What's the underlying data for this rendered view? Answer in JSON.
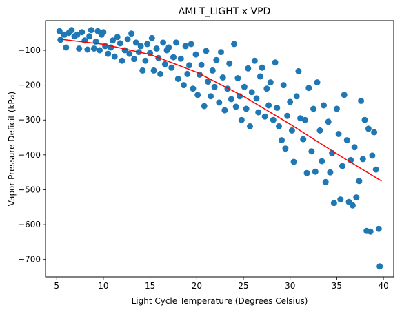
{
  "chart_data": {
    "type": "scatter",
    "title": "AMI T_LIGHT x VPD",
    "xlabel": "Light Cycle Temperature (Degrees Celsius)",
    "ylabel": "Vapor Pressure Deficit (kPa)",
    "xlim": [
      3.8,
      41.1
    ],
    "ylim": [
      -750,
      -15
    ],
    "xticks": [
      5,
      10,
      15,
      20,
      25,
      30,
      35,
      40
    ],
    "yticks": [
      -700,
      -600,
      -500,
      -400,
      -300,
      -200,
      -100
    ],
    "grid": false,
    "legend": "none",
    "colors": {
      "points": "#1f77b4",
      "fit": "#ff0000"
    },
    "series": [
      {
        "kind": "scatter",
        "points": [
          [
            5.3,
            -45
          ],
          [
            5.4,
            -70
          ],
          [
            5.8,
            -55
          ],
          [
            6.0,
            -92
          ],
          [
            6.3,
            -50
          ],
          [
            6.6,
            -42
          ],
          [
            6.9,
            -60
          ],
          [
            7.2,
            -55
          ],
          [
            7.4,
            -95
          ],
          [
            7.7,
            -48
          ],
          [
            8.0,
            -72
          ],
          [
            8.3,
            -98
          ],
          [
            8.5,
            -60
          ],
          [
            8.7,
            -42
          ],
          [
            9.0,
            -95
          ],
          [
            9.2,
            -75
          ],
          [
            9.4,
            -45
          ],
          [
            9.6,
            -100
          ],
          [
            9.8,
            -55
          ],
          [
            10.0,
            -48
          ],
          [
            10.2,
            -88
          ],
          [
            10.5,
            -110
          ],
          [
            10.8,
            -92
          ],
          [
            11.0,
            -72
          ],
          [
            11.2,
            -118
          ],
          [
            11.5,
            -62
          ],
          [
            11.8,
            -80
          ],
          [
            12.0,
            -130
          ],
          [
            12.3,
            -100
          ],
          [
            12.6,
            -68
          ],
          [
            12.8,
            -110
          ],
          [
            13.0,
            -52
          ],
          [
            13.3,
            -125
          ],
          [
            13.5,
            -78
          ],
          [
            13.8,
            -105
          ],
          [
            14.0,
            -88
          ],
          [
            14.2,
            -158
          ],
          [
            14.5,
            -130
          ],
          [
            14.7,
            -82
          ],
          [
            15.0,
            -108
          ],
          [
            15.2,
            -65
          ],
          [
            15.4,
            -158
          ],
          [
            15.7,
            -95
          ],
          [
            15.9,
            -122
          ],
          [
            16.1,
            -168
          ],
          [
            16.4,
            -78
          ],
          [
            16.6,
            -140
          ],
          [
            16.8,
            -100
          ],
          [
            17.0,
            -92
          ],
          [
            17.3,
            -150
          ],
          [
            17.5,
            -120
          ],
          [
            17.8,
            -78
          ],
          [
            18.0,
            -182
          ],
          [
            18.3,
            -124
          ],
          [
            18.6,
            -200
          ],
          [
            18.8,
            -88
          ],
          [
            19.0,
            -168
          ],
          [
            19.2,
            -143
          ],
          [
            19.4,
            -82
          ],
          [
            19.6,
            -210
          ],
          [
            19.9,
            -112
          ],
          [
            20.1,
            -228
          ],
          [
            20.3,
            -170
          ],
          [
            20.5,
            -142
          ],
          [
            20.8,
            -260
          ],
          [
            21.0,
            -102
          ],
          [
            21.2,
            -190
          ],
          [
            21.5,
            -232
          ],
          [
            21.7,
            -158
          ],
          [
            21.9,
            -205
          ],
          [
            22.1,
            -128
          ],
          [
            22.4,
            -250
          ],
          [
            22.6,
            -105
          ],
          [
            22.8,
            -178
          ],
          [
            23.0,
            -272
          ],
          [
            23.3,
            -210
          ],
          [
            23.5,
            -138
          ],
          [
            23.7,
            -240
          ],
          [
            24.0,
            -82
          ],
          [
            24.2,
            -262
          ],
          [
            24.4,
            -180
          ],
          [
            24.6,
            -232
          ],
          [
            24.8,
            -300
          ],
          [
            25.1,
            -205
          ],
          [
            25.3,
            -268
          ],
          [
            25.5,
            -152
          ],
          [
            25.7,
            -318
          ],
          [
            25.9,
            -220
          ],
          [
            26.2,
            -130
          ],
          [
            26.4,
            -238
          ],
          [
            26.6,
            -278
          ],
          [
            26.8,
            -175
          ],
          [
            27.0,
            -150
          ],
          [
            27.3,
            -290
          ],
          [
            27.5,
            -210
          ],
          [
            27.7,
            -258
          ],
          [
            27.9,
            -192
          ],
          [
            28.2,
            -300
          ],
          [
            28.4,
            -135
          ],
          [
            28.6,
            -265
          ],
          [
            28.8,
            -318
          ],
          [
            29.1,
            -358
          ],
          [
            29.3,
            -200
          ],
          [
            29.5,
            -382
          ],
          [
            29.7,
            -288
          ],
          [
            30.0,
            -248
          ],
          [
            30.2,
            -330
          ],
          [
            30.4,
            -420
          ],
          [
            30.7,
            -232
          ],
          [
            30.9,
            -160
          ],
          [
            31.1,
            -295
          ],
          [
            31.4,
            -355
          ],
          [
            31.6,
            -300
          ],
          [
            31.8,
            -452
          ],
          [
            32.0,
            -208
          ],
          [
            32.3,
            -390
          ],
          [
            32.5,
            -268
          ],
          [
            32.7,
            -448
          ],
          [
            32.9,
            -192
          ],
          [
            33.2,
            -330
          ],
          [
            33.4,
            -418
          ],
          [
            33.6,
            -258
          ],
          [
            33.8,
            -478
          ],
          [
            34.1,
            -305
          ],
          [
            34.3,
            -450
          ],
          [
            34.5,
            -395
          ],
          [
            34.7,
            -538
          ],
          [
            35.0,
            -268
          ],
          [
            35.2,
            -340
          ],
          [
            35.4,
            -528
          ],
          [
            35.6,
            -432
          ],
          [
            35.8,
            -228
          ],
          [
            36.1,
            -358
          ],
          [
            36.3,
            -535
          ],
          [
            36.5,
            -415
          ],
          [
            36.7,
            -545
          ],
          [
            36.9,
            -378
          ],
          [
            37.1,
            -522
          ],
          [
            37.4,
            -475
          ],
          [
            37.6,
            -245
          ],
          [
            37.8,
            -412
          ],
          [
            38.0,
            -300
          ],
          [
            38.2,
            -618
          ],
          [
            38.4,
            -325
          ],
          [
            38.6,
            -620
          ],
          [
            38.8,
            -402
          ],
          [
            39.0,
            -335
          ],
          [
            39.2,
            -442
          ],
          [
            39.5,
            -612
          ],
          [
            39.6,
            -720
          ]
        ]
      },
      {
        "kind": "fit-line",
        "curve": "quadratic",
        "x_range": [
          5.3,
          39.8
        ],
        "points": [
          [
            5.3,
            -68
          ],
          [
            10,
            -83
          ],
          [
            15,
            -112
          ],
          [
            20,
            -163
          ],
          [
            25,
            -232
          ],
          [
            30,
            -312
          ],
          [
            35,
            -397
          ],
          [
            39.8,
            -475
          ]
        ]
      }
    ]
  }
}
